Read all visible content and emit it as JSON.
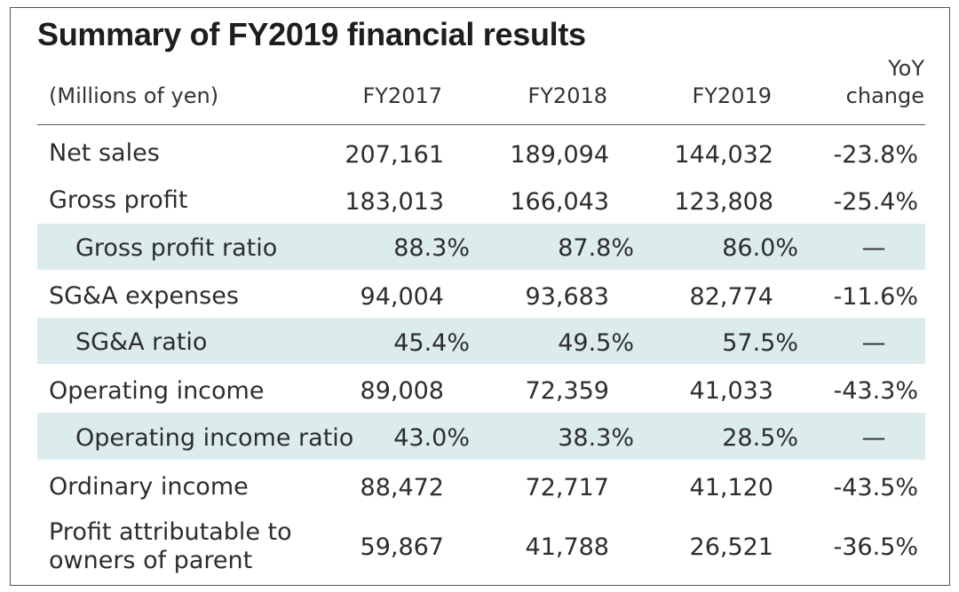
{
  "title": "Summary of FY2019 financial results",
  "header": {
    "unit": "(Millions of yen)",
    "columns": [
      "FY2017",
      "FY2018",
      "FY2019"
    ],
    "yoy_line1": "YoY",
    "yoy_line2": "change"
  },
  "rows": [
    {
      "label": "Net sales",
      "fy2017": "207,161",
      "fy2018": "189,094",
      "fy2019": "144,032",
      "yoy": "-23.8%"
    },
    {
      "label": "Gross profit",
      "fy2017": "183,013",
      "fy2018": "166,043",
      "fy2019": "123,808",
      "yoy": "-25.4%"
    },
    {
      "label": "Gross profit ratio",
      "fy2017": "88.3%",
      "fy2018": "87.8%",
      "fy2019": "86.0%",
      "yoy": "—"
    },
    {
      "label": "SG&A expenses",
      "fy2017": "94,004",
      "fy2018": "93,683",
      "fy2019": "82,774",
      "yoy": "-11.6%"
    },
    {
      "label": "SG&A ratio",
      "fy2017": "45.4%",
      "fy2018": "49.5%",
      "fy2019": "57.5%",
      "yoy": "—"
    },
    {
      "label": "Operating income",
      "fy2017": "89,008",
      "fy2018": "72,359",
      "fy2019": "41,033",
      "yoy": "-43.3%"
    },
    {
      "label": "Operating income ratio",
      "fy2017": "43.0%",
      "fy2018": "38.3%",
      "fy2019": "28.5%",
      "yoy": "—"
    },
    {
      "label": "Ordinary income",
      "fy2017": "88,472",
      "fy2018": "72,717",
      "fy2019": "41,120",
      "yoy": "-43.5%"
    },
    {
      "label_line1": "Profit attributable to",
      "label_line2": "owners of parent",
      "fy2017": "59,867",
      "fy2018": "41,788",
      "fy2019": "26,521",
      "yoy": "-36.5%"
    }
  ]
}
